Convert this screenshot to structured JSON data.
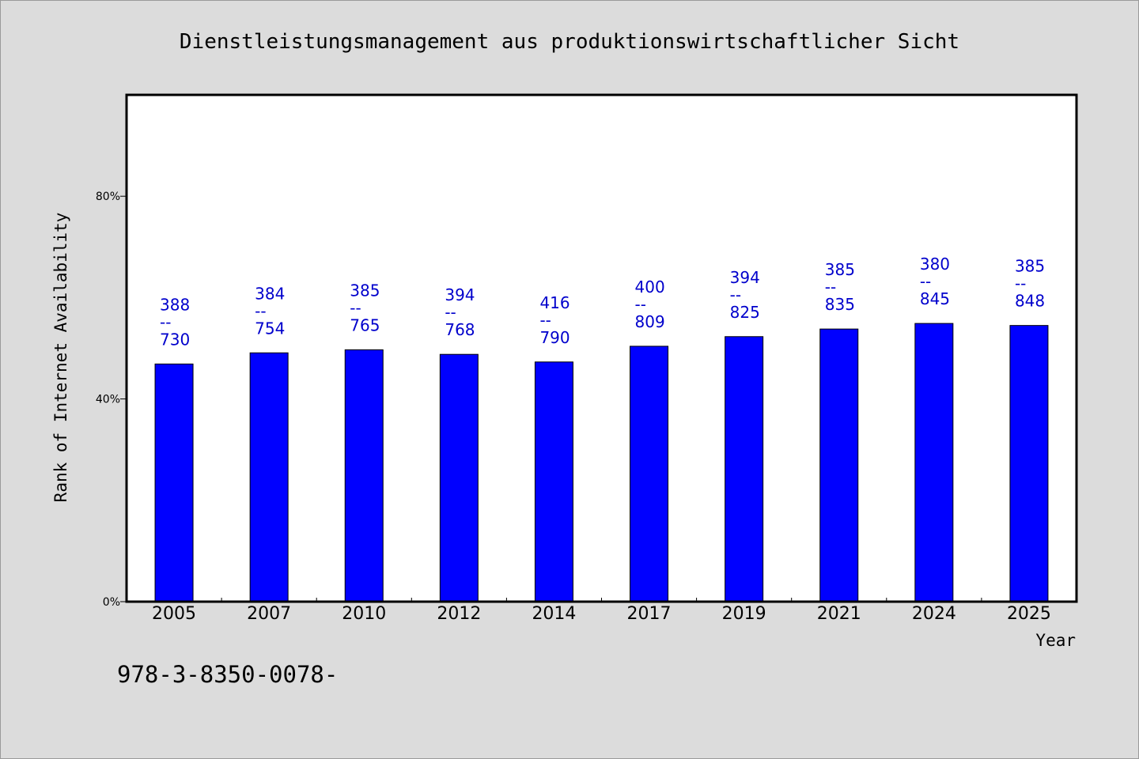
{
  "chart_data": {
    "type": "bar",
    "title": "Dienstleistungsmanagement aus produktionswirtschaftlicher Sicht",
    "xlabel": "Year",
    "ylabel": "Rank of Internet Availability",
    "categories": [
      "2005",
      "2007",
      "2010",
      "2012",
      "2014",
      "2017",
      "2019",
      "2021",
      "2024",
      "2025"
    ],
    "values": [
      46.9,
      49.1,
      49.7,
      48.8,
      47.3,
      50.4,
      52.3,
      53.8,
      54.9,
      54.5
    ],
    "data_labels": [
      [
        "388",
        "--",
        "730"
      ],
      [
        "384",
        "--",
        "754"
      ],
      [
        "385",
        "--",
        "765"
      ],
      [
        "394",
        "--",
        "768"
      ],
      [
        "416",
        "--",
        "790"
      ],
      [
        "400",
        "--",
        "809"
      ],
      [
        "394",
        "--",
        "825"
      ],
      [
        "385",
        "--",
        "835"
      ],
      [
        "380",
        "--",
        "845"
      ],
      [
        "385",
        "--",
        "848"
      ]
    ],
    "ylim": [
      0,
      100
    ],
    "yticks": [
      0,
      40,
      80
    ],
    "ytick_labels": [
      "0%",
      "40%",
      "80%"
    ],
    "grid": false,
    "legend": "none",
    "bar_color": "#0000ff",
    "label_color": "#0000cc"
  },
  "footnote": "978-3-8350-0078-"
}
